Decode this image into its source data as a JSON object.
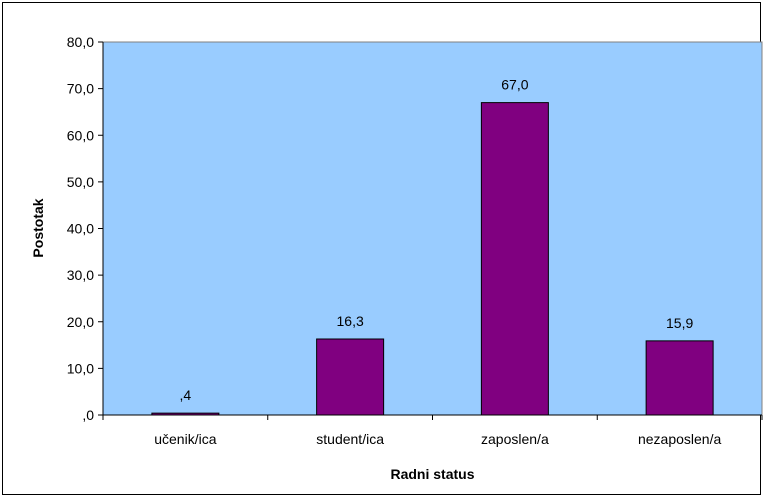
{
  "chart_data": {
    "type": "bar",
    "categories": [
      "učenik/ica",
      "student/ica",
      "zaposlen/a",
      "nezaposlen/a"
    ],
    "values": [
      0.4,
      16.3,
      67.0,
      15.9
    ],
    "data_labels": [
      ",4",
      "16,3",
      "67,0",
      "15,9"
    ],
    "ylabel": "Postotak",
    "xlabel": "Radni status",
    "ylim": [
      0,
      80
    ],
    "yticks": [
      ",0",
      "10,0",
      "20,0",
      "30,0",
      "40,0",
      "50,0",
      "60,0",
      "70,0",
      "80,0"
    ],
    "grid": false,
    "legend": "none",
    "colors": {
      "plot_background": "#99ccff",
      "bar_fill": "#800080",
      "bar_stroke": "#000000"
    }
  }
}
